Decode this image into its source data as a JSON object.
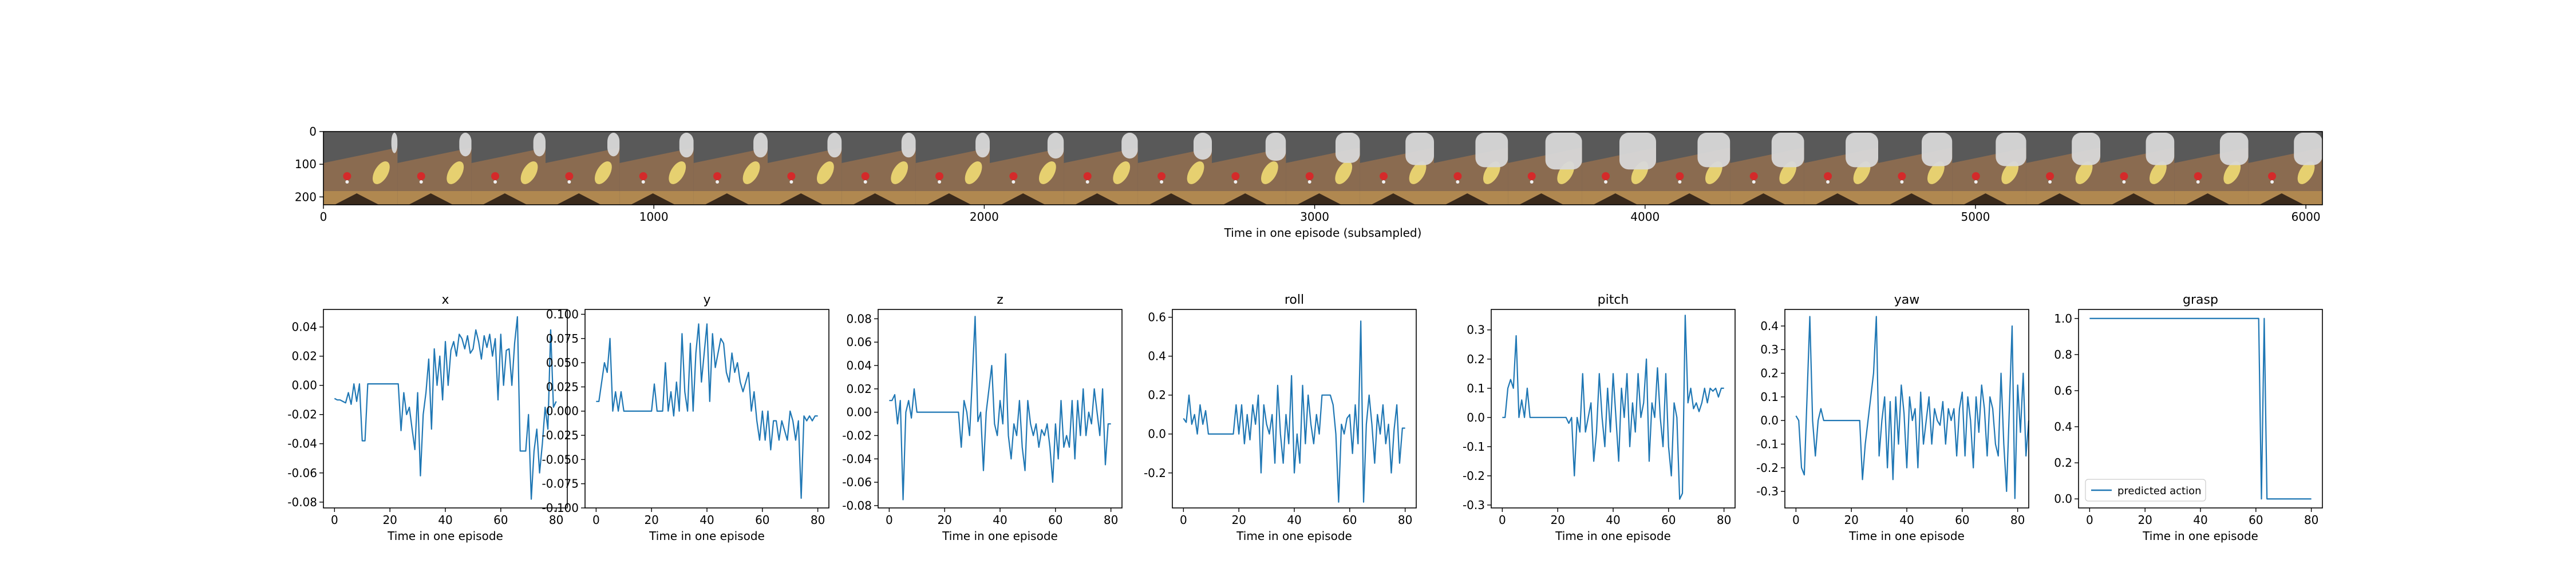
{
  "colors": {
    "line": "#1f77b4",
    "wall": "#595959",
    "table": "#8a6b50",
    "table_edge": "#b08850",
    "table_shadow": "#3a2a1c",
    "object_yellow": "#e6d070",
    "object_red": "#d42a2a",
    "gripper": "#d8d8d8"
  },
  "strip": {
    "xlabel": "Time in one episode (subsampled)",
    "xticks": [
      "0",
      "1000",
      "2000",
      "3000",
      "4000",
      "5000",
      "6000"
    ],
    "yticks": [
      "0",
      "100",
      "200"
    ],
    "frame_count": 27,
    "arm_presence": [
      0.15,
      0.3,
      0.3,
      0.3,
      0.35,
      0.35,
      0.35,
      0.35,
      0.35,
      0.4,
      0.4,
      0.45,
      0.5,
      0.6,
      0.7,
      0.8,
      0.9,
      0.9,
      0.8,
      0.8,
      0.8,
      0.75,
      0.75,
      0.7,
      0.7,
      0.7,
      0.7
    ]
  },
  "chart_data": [
    {
      "type": "line",
      "title": "x",
      "xlabel": "Time in one episode",
      "xlim": [
        -4,
        84
      ],
      "xticks": [
        0,
        20,
        40,
        60,
        80
      ],
      "ylim": [
        -0.084,
        0.052
      ],
      "yticks": [
        "0.04",
        "0.02",
        "0.00",
        "-0.02",
        "-0.04",
        "-0.06",
        "-0.08"
      ],
      "ytick_values": [
        0.04,
        0.02,
        0,
        -0.02,
        -0.04,
        -0.06,
        -0.08
      ],
      "values": [
        -0.009,
        -0.01,
        -0.01,
        -0.011,
        -0.012,
        -0.005,
        -0.013,
        0.001,
        -0.011,
        0.001,
        -0.038,
        -0.038,
        0.001,
        0.001,
        0.001,
        0.001,
        0.001,
        0.001,
        0.001,
        0.001,
        0.001,
        0.001,
        0.001,
        0.001,
        -0.031,
        -0.005,
        -0.02,
        -0.015,
        -0.03,
        -0.044,
        -0.005,
        -0.062,
        -0.02,
        -0.005,
        0.018,
        -0.03,
        0.025,
        0.0,
        0.02,
        -0.01,
        0.03,
        0.0,
        0.024,
        0.03,
        0.02,
        0.035,
        0.032,
        0.025,
        0.034,
        0.022,
        0.025,
        0.038,
        0.03,
        0.018,
        0.034,
        0.026,
        0.035,
        0.02,
        0.032,
        -0.01,
        0.035,
        0.0,
        0.024,
        0.025,
        0.0,
        0.029,
        0.047,
        -0.045,
        -0.045,
        -0.045,
        -0.02,
        -0.078,
        -0.045,
        -0.03,
        -0.06,
        -0.04,
        -0.015,
        -0.03,
        0.038,
        -0.015,
        -0.011
      ]
    },
    {
      "type": "line",
      "title": "y",
      "xlabel": "Time in one episode",
      "xlim": [
        -4,
        84
      ],
      "xticks": [
        0,
        20,
        40,
        60,
        80
      ],
      "ylim": [
        -0.1,
        0.105
      ],
      "yticks": [
        "0.100",
        "0.075",
        "0.050",
        "0.025",
        "0.000",
        "-0.025",
        "-0.050",
        "-0.075",
        "-0.100"
      ],
      "ytick_values": [
        0.1,
        0.075,
        0.05,
        0.025,
        0,
        -0.025,
        -0.05,
        -0.075,
        -0.1
      ],
      "values": [
        0.01,
        0.01,
        0.03,
        0.05,
        0.04,
        0.075,
        0.0,
        0.02,
        0.0,
        0.02,
        0.0,
        0.0,
        0.0,
        0.0,
        0.0,
        0.0,
        0.0,
        0.0,
        0.0,
        0.0,
        0.0,
        0.028,
        0.0,
        0.0,
        0.0,
        0.05,
        0.0,
        0.02,
        -0.005,
        0.03,
        0.0,
        0.08,
        0.02,
        0.0,
        0.07,
        0.0,
        0.06,
        0.09,
        0.03,
        0.06,
        0.09,
        0.01,
        0.08,
        0.045,
        0.06,
        0.075,
        0.07,
        0.04,
        0.03,
        0.06,
        0.04,
        0.05,
        0.03,
        0.02,
        0.03,
        0.04,
        0.0,
        0.02,
        -0.01,
        -0.03,
        0.0,
        -0.03,
        0.0,
        -0.04,
        -0.01,
        -0.01,
        -0.03,
        -0.01,
        -0.02,
        -0.03,
        0.0,
        -0.01,
        -0.03,
        -0.01,
        -0.09,
        -0.005,
        -0.01,
        -0.005,
        -0.01,
        -0.005,
        -0.005
      ]
    },
    {
      "type": "line",
      "title": "z",
      "xlabel": "Time in one episode",
      "xlim": [
        -4,
        84
      ],
      "xticks": [
        0,
        20,
        40,
        60,
        80
      ],
      "ylim": [
        -0.082,
        0.088
      ],
      "yticks": [
        "0.08",
        "0.06",
        "0.04",
        "0.02",
        "0.00",
        "-0.02",
        "-0.04",
        "-0.06",
        "-0.08"
      ],
      "ytick_values": [
        0.08,
        0.06,
        0.04,
        0.02,
        0,
        -0.02,
        -0.04,
        -0.06,
        -0.08
      ],
      "values": [
        0.01,
        0.01,
        0.015,
        -0.01,
        0.01,
        -0.075,
        0.0,
        0.01,
        -0.005,
        0.02,
        0.0,
        0.0,
        0.0,
        0.0,
        0.0,
        0.0,
        0.0,
        0.0,
        0.0,
        0.0,
        0.0,
        0.0,
        0.0,
        0.0,
        0.0,
        0.0,
        -0.03,
        0.01,
        0.0,
        -0.02,
        0.03,
        0.082,
        -0.008,
        0.0,
        -0.05,
        0.0,
        0.02,
        0.04,
        -0.01,
        -0.02,
        0.01,
        -0.01,
        0.05,
        -0.02,
        -0.04,
        -0.01,
        -0.02,
        0.01,
        -0.03,
        -0.05,
        0.01,
        -0.01,
        -0.02,
        -0.01,
        -0.03,
        -0.015,
        -0.02,
        -0.01,
        -0.03,
        -0.06,
        -0.01,
        -0.04,
        0.01,
        -0.03,
        -0.02,
        -0.03,
        0.01,
        -0.04,
        0.01,
        -0.02,
        0.02,
        -0.02,
        0.0,
        -0.01,
        0.02,
        0.0,
        -0.02,
        0.02,
        -0.045,
        -0.01,
        -0.01
      ]
    },
    {
      "type": "line",
      "title": "roll",
      "xlabel": "Time in one episode",
      "xlim": [
        -4,
        84
      ],
      "xticks": [
        0,
        20,
        40,
        60,
        80
      ],
      "ylim": [
        -0.38,
        0.64
      ],
      "yticks": [
        "0.6",
        "0.4",
        "0.2",
        "0.0",
        "-0.2"
      ],
      "ytick_values": [
        0.6,
        0.4,
        0.2,
        0,
        -0.2
      ],
      "values": [
        0.08,
        0.06,
        0.2,
        0.05,
        0.1,
        0.0,
        0.15,
        0.05,
        0.12,
        0.0,
        0.0,
        0.0,
        0.0,
        0.0,
        0.0,
        0.0,
        0.0,
        0.0,
        0.0,
        0.15,
        0.0,
        0.15,
        -0.05,
        0.1,
        -0.03,
        0.15,
        0.05,
        0.2,
        -0.2,
        0.15,
        0.05,
        0.0,
        0.1,
        -0.15,
        0.25,
        0.0,
        -0.15,
        0.1,
        -0.05,
        0.3,
        -0.2,
        0.0,
        -0.15,
        0.25,
        -0.05,
        0.2,
        0.05,
        -0.05,
        0.1,
        0.0,
        0.2,
        0.2,
        0.2,
        0.2,
        0.15,
        0.0,
        -0.35,
        0.05,
        0.0,
        0.08,
        0.1,
        -0.1,
        0.15,
        -0.05,
        0.58,
        -0.35,
        0.05,
        0.2,
        0.05,
        -0.15,
        0.1,
        0.0,
        0.15,
        -0.05,
        0.05,
        -0.2,
        0.02,
        0.15,
        -0.15,
        0.03,
        0.03
      ]
    },
    {
      "type": "line",
      "title": "pitch",
      "xlabel": "Time in one episode",
      "xlim": [
        -4,
        84
      ],
      "xticks": [
        0,
        20,
        40,
        60,
        80
      ],
      "ylim": [
        -0.31,
        0.37
      ],
      "yticks": [
        "0.3",
        "0.2",
        "0.1",
        "0.0",
        "-0.1",
        "-0.2",
        "-0.3"
      ],
      "ytick_values": [
        0.3,
        0.2,
        0.1,
        0,
        -0.1,
        -0.2,
        -0.3
      ],
      "values": [
        0.0,
        0.0,
        0.1,
        0.13,
        0.1,
        0.28,
        0.0,
        0.06,
        0.0,
        0.1,
        0.0,
        0.0,
        0.0,
        0.0,
        0.0,
        0.0,
        0.0,
        0.0,
        0.0,
        0.0,
        0.0,
        0.0,
        0.0,
        0.0,
        -0.02,
        0.0,
        -0.2,
        0.0,
        -0.05,
        0.15,
        -0.05,
        0.0,
        0.05,
        -0.15,
        -0.05,
        0.15,
        0.0,
        -0.1,
        0.1,
        -0.05,
        0.15,
        0.0,
        -0.15,
        0.1,
        0.0,
        0.15,
        -0.1,
        0.05,
        -0.05,
        0.15,
        0.0,
        0.05,
        0.2,
        -0.15,
        0.05,
        0.0,
        0.17,
        0.0,
        -0.1,
        0.15,
        -0.1,
        -0.2,
        0.05,
        0.0,
        -0.28,
        -0.26,
        0.35,
        0.05,
        0.1,
        0.03,
        0.05,
        0.02,
        0.05,
        0.1,
        0.05,
        0.1,
        0.09,
        0.1,
        0.07,
        0.1,
        0.1
      ]
    },
    {
      "type": "line",
      "title": "yaw",
      "xlabel": "Time in one episode",
      "xlim": [
        -4,
        84
      ],
      "xticks": [
        0,
        20,
        40,
        60,
        80
      ],
      "ylim": [
        -0.37,
        0.47
      ],
      "yticks": [
        "0.4",
        "0.3",
        "0.2",
        "0.1",
        "0.0",
        "-0.1",
        "-0.2",
        "-0.3"
      ],
      "ytick_values": [
        0.4,
        0.3,
        0.2,
        0.1,
        0,
        -0.1,
        -0.2,
        -0.3
      ],
      "values": [
        0.02,
        0.0,
        -0.2,
        -0.23,
        0.1,
        0.44,
        0.0,
        -0.15,
        0.0,
        0.05,
        0.0,
        0.0,
        0.0,
        0.0,
        0.0,
        0.0,
        0.0,
        0.0,
        0.0,
        0.0,
        0.0,
        0.0,
        0.0,
        0.0,
        -0.25,
        -0.1,
        0.0,
        0.1,
        0.2,
        0.44,
        -0.15,
        0.0,
        0.1,
        -0.2,
        0.08,
        -0.25,
        0.1,
        -0.1,
        0.15,
        0.03,
        -0.2,
        0.1,
        0.0,
        0.05,
        -0.2,
        0.12,
        -0.1,
        0.0,
        0.1,
        -0.1,
        0.05,
        0.0,
        -0.02,
        0.08,
        -0.1,
        0.05,
        0.0,
        0.05,
        -0.15,
        0.05,
        0.12,
        -0.15,
        0.1,
        0.0,
        -0.2,
        0.1,
        -0.05,
        0.15,
        0.05,
        -0.15,
        0.1,
        0.05,
        -0.1,
        -0.15,
        0.2,
        -0.1,
        -0.3,
        0.05,
        0.4,
        -0.33,
        0.15,
        -0.05,
        0.2,
        -0.15,
        0.0
      ]
    },
    {
      "type": "line",
      "title": "grasp",
      "xlabel": "Time in one episode",
      "xlim": [
        -4,
        84
      ],
      "xticks": [
        0,
        20,
        40,
        60,
        80
      ],
      "ylim": [
        -0.05,
        1.05
      ],
      "yticks": [
        "1.0",
        "0.8",
        "0.6",
        "0.4",
        "0.2",
        "0.0"
      ],
      "ytick_values": [
        1,
        0.8,
        0.6,
        0.4,
        0.2,
        0
      ],
      "values": [
        1,
        1,
        1,
        1,
        1,
        1,
        1,
        1,
        1,
        1,
        1,
        1,
        1,
        1,
        1,
        1,
        1,
        1,
        1,
        1,
        1,
        1,
        1,
        1,
        1,
        1,
        1,
        1,
        1,
        1,
        1,
        1,
        1,
        1,
        1,
        1,
        1,
        1,
        1,
        1,
        1,
        1,
        1,
        1,
        1,
        1,
        1,
        1,
        1,
        1,
        1,
        1,
        1,
        1,
        1,
        1,
        1,
        1,
        1,
        1,
        1,
        1,
        0,
        1,
        0,
        0,
        0,
        0,
        0,
        0,
        0,
        0,
        0,
        0,
        0,
        0,
        0,
        0,
        0,
        0,
        0
      ],
      "legend": "predicted action",
      "legend_position": "lower-left"
    }
  ]
}
